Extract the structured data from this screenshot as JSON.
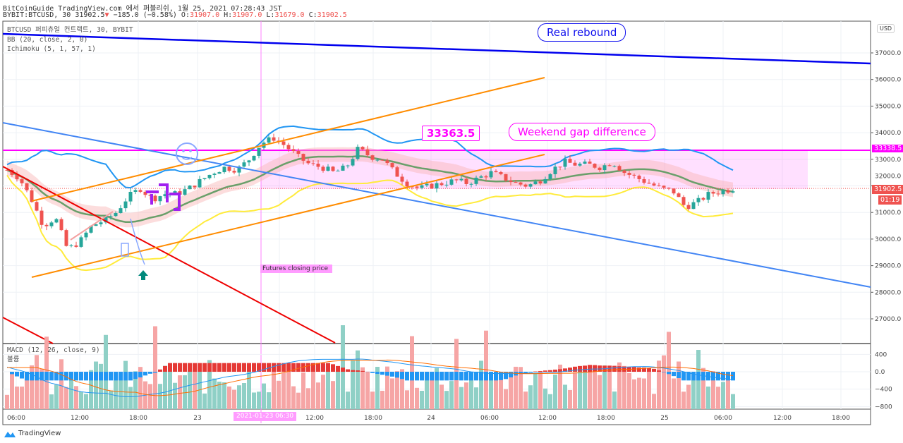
{
  "header": {
    "publish_line": "BitCoinGuide TradingView.com 에서 퍼블리쉬, 1월 25, 2021 07:28:43 JST",
    "symbol": "BYBIT:BTCUSD, 30",
    "last": "31902.5",
    "change": "−185.0 (−0.58%)",
    "o_label": "O:",
    "o": "31907.0",
    "h_label": "H:",
    "h": "31907.0",
    "l_label": "L:",
    "l": "31679.0",
    "c_label": "C:",
    "c": "31902.5"
  },
  "legend": {
    "main": "BTCUSD 퍼피츄얼 컨트랙트, 30, BYBIT",
    "bb": "BB (20, close, 2, 0)",
    "ichimoku": "Ichimoku (5, 1, 57, 1)",
    "macd": "MACD (12, 26, close, 9)",
    "volume": "볼륨"
  },
  "annotations": {
    "real_rebound": "Real rebound",
    "weekend_gap": "Weekend gap difference",
    "gap_price": "33363.5",
    "futures_close": "Futures closing price"
  },
  "price_axis": {
    "currency": "USD",
    "ticks": [
      "37000.0",
      "36000.0",
      "35000.0",
      "34000.0",
      "33000.0",
      "32000.0",
      "31000.0",
      "30000.0",
      "29000.0",
      "28000.0",
      "27000.0"
    ],
    "gap_level": "33338.5",
    "current_price": "31902.5",
    "countdown": "01:19"
  },
  "macd_axis": {
    "ticks": [
      "400",
      "0.0",
      "−400",
      "−800"
    ]
  },
  "time_axis": {
    "ticks": [
      "06:00",
      "12:00",
      "18:00",
      "23",
      "06:30",
      "12:00",
      "18:00",
      "24",
      "06:00",
      "12:00",
      "18:00",
      "25",
      "06:00",
      "12:00",
      "18:00"
    ],
    "crosshair_label": "2021-01-23   06:30"
  },
  "colors": {
    "up": "#26a69a",
    "down": "#ef5350",
    "bb_mid": "#4caf50",
    "bb_upper": "#2196f3",
    "bb_lower": "#ffeb3b",
    "gap": "#ff00ff"
  },
  "footer": {
    "brand": "TradingView"
  },
  "chart_data": {
    "type": "candlestick",
    "title": "BYBIT:BTCUSD, 30",
    "ylabel": "USD",
    "ylim": [
      26000,
      37300
    ],
    "closes_keypoints": [
      32600,
      32300,
      31500,
      30500,
      30800,
      29600,
      29900,
      30500,
      30700,
      31000,
      31600,
      31900,
      31500,
      31700,
      31700,
      31900,
      32200,
      32500,
      32700,
      32600,
      33000,
      33600,
      33800,
      33500,
      33100,
      32800,
      32700,
      32500,
      32700,
      33400,
      33100,
      33000,
      32500,
      32100,
      31900,
      32000,
      32100,
      32200,
      32100,
      32300,
      32500,
      32300,
      32100,
      32000,
      32200,
      32600,
      32900,
      32800,
      32800,
      32700,
      32900,
      32500,
      32300,
      32100,
      31900,
      31800,
      31200,
      31400,
      31700,
      31800,
      31902.5
    ],
    "gap_level": 33338.5,
    "last": 31902.5
  }
}
